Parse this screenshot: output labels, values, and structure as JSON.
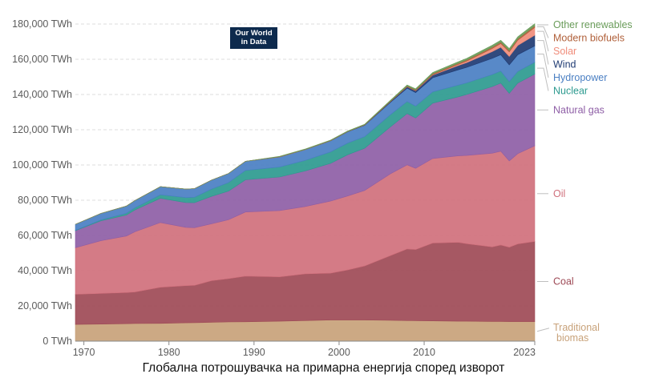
{
  "logo": {
    "line1": "Our World",
    "line2": "in Data"
  },
  "caption": "Глобална потрошувачка на примарна енергија според изворот",
  "chart_data": {
    "type": "area",
    "stacked": true,
    "title": "Глобална потрошувачка на примарна енергија според изворот",
    "xlabel": "",
    "ylabel": "",
    "xlim": [
      1969,
      2023
    ],
    "ylim": [
      0,
      180000
    ],
    "unit": "TWh",
    "x_ticks": [
      "1970",
      "1980",
      "1990",
      "2000",
      "2010",
      "2023"
    ],
    "y_ticks": [
      "0 TWh",
      "20,000 TWh",
      "40,000 TWh",
      "60,000 TWh",
      "80,000 TWh",
      "100,000 TWh",
      "120,000 TWh",
      "140,000 TWh",
      "160,000 TWh",
      "180,000 TWh"
    ],
    "x": [
      1969,
      1972,
      1975,
      1976,
      1979,
      1982,
      1983,
      1985,
      1987,
      1989,
      1993,
      1996,
      1999,
      2001,
      2003,
      2006,
      2008,
      2009,
      2011,
      2014,
      2015,
      2018,
      2019,
      2020,
      2021,
      2023
    ],
    "series": [
      {
        "name": "Traditional biomas",
        "color": "#c8a27a",
        "values": [
          9500,
          9700,
          9900,
          10000,
          10100,
          10400,
          10500,
          10700,
          10900,
          11000,
          11300,
          11700,
          12000,
          12000,
          12000,
          11800,
          11700,
          11600,
          11500,
          11300,
          11300,
          11200,
          11200,
          11100,
          11100,
          11100
        ]
      },
      {
        "name": "Coal",
        "color": "#9e4a56",
        "values": [
          17100,
          17400,
          17700,
          17900,
          20500,
          21100,
          21200,
          23600,
          24600,
          25900,
          25200,
          26500,
          26600,
          28400,
          30700,
          36700,
          40600,
          40400,
          44200,
          44800,
          44000,
          42300,
          43400,
          42200,
          44100,
          45500
        ]
      },
      {
        "name": "Oil",
        "color": "#d0707c",
        "values": [
          26400,
          29900,
          32100,
          34200,
          36700,
          33100,
          32700,
          32300,
          33400,
          36400,
          37600,
          38200,
          40900,
          42000,
          42800,
          46400,
          47800,
          46100,
          48000,
          49100,
          50100,
          53200,
          53200,
          49000,
          51200,
          54300
        ]
      },
      {
        "name": "Natural gas",
        "color": "#8e5ea6",
        "values": [
          9700,
          11300,
          11900,
          12400,
          13800,
          14100,
          14200,
          15600,
          16300,
          18300,
          19100,
          20200,
          21400,
          23400,
          24000,
          26600,
          29100,
          28600,
          31400,
          33500,
          34600,
          37800,
          38700,
          38400,
          40100,
          40700
        ]
      },
      {
        "name": "Nuclear",
        "color": "#2c9a8f",
        "values": [
          200,
          500,
          1000,
          1200,
          2000,
          2800,
          3100,
          4100,
          4800,
          5300,
          5600,
          6000,
          6500,
          6600,
          6600,
          6900,
          6800,
          6700,
          6400,
          6600,
          6600,
          6800,
          6800,
          6600,
          6600,
          6700
        ]
      },
      {
        "name": "Hydropower",
        "color": "#4a7fc3",
        "values": [
          3400,
          3700,
          4100,
          4100,
          4600,
          4800,
          4900,
          5100,
          5200,
          5200,
          5800,
          6100,
          6300,
          6400,
          6400,
          7000,
          7600,
          7700,
          8000,
          8700,
          8800,
          9200,
          9300,
          9500,
          9500,
          9300
        ]
      },
      {
        "name": "Wind",
        "color": "#1f3b73",
        "values": [
          0,
          0,
          0,
          0,
          0,
          0,
          0,
          0,
          0,
          0,
          10,
          30,
          80,
          140,
          200,
          470,
          780,
          1000,
          1500,
          2400,
          2700,
          3800,
          4200,
          4800,
          5200,
          6100
        ]
      },
      {
        "name": "Solar",
        "color": "#f08c7a",
        "values": [
          0,
          0,
          0,
          0,
          0,
          0,
          0,
          0,
          0,
          0,
          0,
          0,
          0,
          0,
          0,
          10,
          40,
          60,
          240,
          630,
          800,
          1800,
          2100,
          2600,
          3000,
          4300
        ]
      },
      {
        "name": "Modern biofuels",
        "color": "#b0603a",
        "values": [
          0,
          0,
          0,
          0,
          0,
          0,
          0,
          0,
          0,
          0,
          100,
          110,
          120,
          120,
          130,
          260,
          420,
          460,
          560,
          700,
          720,
          800,
          840,
          780,
          820,
          920
        ]
      },
      {
        "name": "Other renewables",
        "color": "#6a9c5a",
        "values": [
          0,
          0,
          0,
          0,
          0,
          0,
          0,
          0,
          0,
          0,
          200,
          220,
          250,
          280,
          310,
          420,
          560,
          600,
          720,
          850,
          880,
          1040,
          1080,
          1100,
          1150,
          1260
        ]
      }
    ]
  }
}
